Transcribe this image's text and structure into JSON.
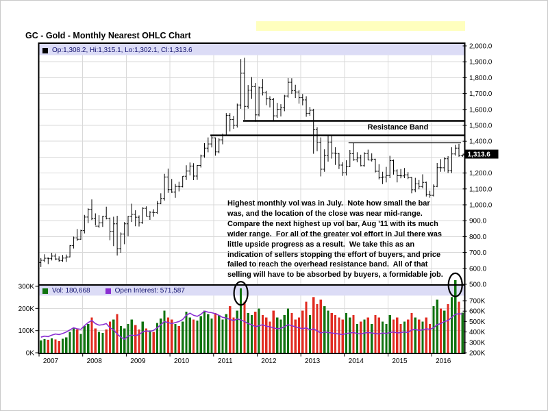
{
  "page": {
    "title": "GC - Gold - Monthly Nearest OHLC Chart"
  },
  "price_legend": {
    "text": "Op:1,308.2, Hi:1,315.1, Lo:1,302.1, Cl:1,313.6"
  },
  "volume_legend": {
    "vol_text": "Vol: 180,668",
    "oi_text": "Open Interest: 571,587"
  },
  "annotations": {
    "resistance_label": "Resistance Band",
    "commentary_lines": [
      "Highest monthly vol was in July.  Note how small the bar",
      "was, and the location of the close was near mid-range.",
      "Compare the next highest up vol bar, Aug '11 with its much",
      "wider range.  For all of the greater vol effort in Jul there was",
      "little upside progress as a result.  We take this as an",
      "indication of sellers stopping the effort of buyers, and price",
      "failed to reach the overhead resistance band.  All of that",
      "selling will have to be absorbed by buyers, a formidable job."
    ]
  },
  "chart_data": {
    "type": "ohlc",
    "title": "GC - Gold - Monthly Nearest OHLC Chart",
    "panes": [
      "price",
      "volume"
    ],
    "months_start": "2007-01",
    "x_years": [
      2007,
      2008,
      2009,
      2010,
      2011,
      2012,
      2013,
      2014,
      2015,
      2016
    ],
    "price_axis": {
      "min": 500,
      "max": 2000,
      "tick": 100,
      "side": "right"
    },
    "volume_axis": {
      "min": 0,
      "max": 300,
      "tick": 100,
      "unit": "K",
      "side": "left"
    },
    "oi_axis": {
      "min": 200,
      "max": 700,
      "tick": 100,
      "unit": "K",
      "side": "right"
    },
    "current_price_label": "1,313.6",
    "series": {
      "open": [
        636,
        651,
        664,
        661,
        677,
        659,
        650,
        665,
        672,
        743,
        792,
        783,
        838,
        923,
        971,
        916,
        866,
        887,
        928,
        913,
        833,
        880,
        724,
        816,
        880,
        927,
        940,
        922,
        888,
        978,
        927,
        953,
        951,
        1008,
        1040,
        1175,
        1096,
        1081,
        1116,
        1114,
        1180,
        1212,
        1244,
        1181,
        1248,
        1307,
        1357,
        1383,
        1421,
        1333,
        1409,
        1438,
        1563,
        1536,
        1500,
        1628,
        1828,
        1620,
        1722,
        1745,
        1566,
        1737,
        1709,
        1668,
        1662,
        1560,
        1600,
        1611,
        1685,
        1771,
        1718,
        1710,
        1674,
        1660,
        1576,
        1595,
        1472,
        1392,
        1224,
        1312,
        1395,
        1326,
        1323,
        1250,
        1202,
        1240,
        1321,
        1283,
        1295,
        1246,
        1322,
        1282,
        1287,
        1211,
        1171,
        1175,
        1184,
        1278,
        1213,
        1183,
        1182,
        1189,
        1171,
        1095,
        1132,
        1115,
        1141,
        1065,
        1060,
        1116,
        1234,
        1233,
        1290,
        1215,
        1320,
        1357,
        1308.2
      ],
      "high": [
        665,
        689,
        669,
        698,
        693,
        676,
        684,
        687,
        747,
        800,
        848,
        843,
        936,
        978,
        1034,
        946,
        935,
        931,
        988,
        920,
        925,
        931,
        826,
        892,
        930,
        1007,
        966,
        933,
        985,
        990,
        960,
        972,
        1024,
        1072,
        1195,
        1227,
        1163,
        1131,
        1145,
        1181,
        1249,
        1266,
        1262,
        1250,
        1316,
        1388,
        1424,
        1432,
        1424,
        1418,
        1448,
        1577,
        1577,
        1559,
        1637,
        1917,
        1925,
        1754,
        1804,
        1767,
        1744,
        1792,
        1717,
        1683,
        1672,
        1642,
        1633,
        1692,
        1798,
        1796,
        1755,
        1723,
        1697,
        1683,
        1616,
        1604,
        1488,
        1424,
        1349,
        1434,
        1434,
        1362,
        1327,
        1268,
        1280,
        1345,
        1392,
        1331,
        1315,
        1330,
        1347,
        1324,
        1290,
        1256,
        1208,
        1239,
        1308,
        1285,
        1223,
        1225,
        1232,
        1206,
        1175,
        1170,
        1156,
        1192,
        1146,
        1088,
        1128,
        1263,
        1287,
        1299,
        1306,
        1362,
        1377,
        1384,
        1315.1
      ],
      "low": [
        608,
        640,
        627,
        650,
        652,
        642,
        642,
        641,
        670,
        725,
        773,
        780,
        820,
        885,
        904,
        871,
        855,
        861,
        908,
        777,
        740,
        681,
        698,
        752,
        802,
        892,
        865,
        864,
        880,
        927,
        905,
        925,
        943,
        1004,
        1027,
        1075,
        1074,
        1044,
        1084,
        1110,
        1156,
        1185,
        1155,
        1157,
        1235,
        1296,
        1330,
        1361,
        1309,
        1325,
        1381,
        1437,
        1462,
        1478,
        1486,
        1604,
        1535,
        1605,
        1667,
        1523,
        1556,
        1688,
        1627,
        1613,
        1529,
        1547,
        1556,
        1589,
        1674,
        1698,
        1672,
        1636,
        1626,
        1554,
        1560,
        1321,
        1338,
        1179,
        1208,
        1272,
        1291,
        1251,
        1225,
        1182,
        1184,
        1237,
        1277,
        1268,
        1242,
        1240,
        1281,
        1273,
        1204,
        1160,
        1130,
        1141,
        1168,
        1190,
        1141,
        1167,
        1168,
        1162,
        1072,
        1080,
        1098,
        1104,
        1052,
        1045,
        1053,
        1111,
        1208,
        1209,
        1199,
        1200,
        1310,
        1302,
        1302.1
      ],
      "close": [
        651,
        664,
        661,
        677,
        659,
        650,
        665,
        672,
        743,
        792,
        783,
        838,
        923,
        971,
        916,
        866,
        887,
        928,
        913,
        833,
        880,
        724,
        816,
        880,
        927,
        940,
        922,
        888,
        978,
        927,
        953,
        951,
        1008,
        1040,
        1175,
        1096,
        1081,
        1116,
        1114,
        1180,
        1212,
        1244,
        1181,
        1248,
        1307,
        1357,
        1383,
        1421,
        1333,
        1409,
        1438,
        1563,
        1536,
        1500,
        1628,
        1828,
        1620,
        1722,
        1745,
        1566,
        1737,
        1709,
        1668,
        1662,
        1560,
        1600,
        1611,
        1685,
        1771,
        1718,
        1710,
        1674,
        1660,
        1576,
        1595,
        1472,
        1392,
        1224,
        1312,
        1395,
        1326,
        1323,
        1250,
        1202,
        1240,
        1321,
        1283,
        1295,
        1246,
        1322,
        1282,
        1287,
        1211,
        1171,
        1175,
        1184,
        1278,
        1213,
        1183,
        1182,
        1189,
        1171,
        1095,
        1132,
        1115,
        1141,
        1065,
        1060,
        1116,
        1234,
        1233,
        1290,
        1215,
        1320,
        1357,
        1309,
        1313.6
      ],
      "volume_k": [
        55,
        62,
        58,
        65,
        60,
        52,
        64,
        70,
        95,
        110,
        105,
        85,
        120,
        130,
        160,
        110,
        95,
        90,
        105,
        140,
        150,
        175,
        120,
        110,
        130,
        150,
        125,
        105,
        140,
        110,
        100,
        95,
        135,
        155,
        190,
        160,
        150,
        130,
        120,
        140,
        185,
        160,
        150,
        145,
        165,
        190,
        175,
        155,
        180,
        170,
        150,
        175,
        210,
        160,
        190,
        290,
        230,
        180,
        170,
        185,
        200,
        170,
        160,
        140,
        190,
        160,
        150,
        170,
        200,
        180,
        150,
        160,
        190,
        230,
        170,
        250,
        220,
        240,
        210,
        190,
        180,
        170,
        160,
        150,
        180,
        160,
        170,
        130,
        140,
        150,
        160,
        130,
        170,
        160,
        140,
        130,
        170,
        150,
        160,
        130,
        140,
        150,
        180,
        160,
        150,
        140,
        160,
        130,
        210,
        240,
        200,
        190,
        220,
        250,
        328,
        230,
        181
      ],
      "open_interest_k": [
        350,
        360,
        355,
        370,
        380,
        375,
        385,
        400,
        420,
        440,
        430,
        425,
        460,
        490,
        510,
        480,
        465,
        470,
        480,
        440,
        420,
        380,
        350,
        330,
        360,
        370,
        365,
        375,
        400,
        410,
        405,
        415,
        440,
        470,
        500,
        490,
        480,
        490,
        500,
        520,
        560,
        580,
        560,
        550,
        570,
        600,
        590,
        585,
        575,
        560,
        540,
        535,
        520,
        510,
        525,
        515,
        500,
        480,
        470,
        450,
        460,
        470,
        455,
        450,
        440,
        430,
        435,
        450,
        470,
        460,
        450,
        440,
        430,
        440,
        420,
        430,
        410,
        390,
        400,
        395,
        390,
        385,
        380,
        375,
        385,
        390,
        395,
        385,
        380,
        390,
        395,
        390,
        385,
        380,
        390,
        385,
        395,
        400,
        390,
        395,
        400,
        395,
        420,
        425,
        415,
        420,
        430,
        425,
        440,
        470,
        480,
        500,
        510,
        540,
        570,
        575,
        572
      ]
    },
    "overlays": {
      "resistance_lines": [
        {
          "price": 1528,
          "from": "2011-09",
          "to": "2016-09",
          "style": "thick"
        },
        {
          "price": 1437,
          "from": "2010-12",
          "to": "2016-09",
          "style": "thick"
        },
        {
          "price": 1390,
          "from": "2014-02",
          "to": "2016-08",
          "style": "thin"
        }
      ],
      "circled_months": [
        "2011-08",
        "2016-07"
      ]
    },
    "colors": {
      "ohlc": "#000000",
      "up_volume": "#107310",
      "down_volume": "#e02b20",
      "oi_line": "#8a2fd2",
      "legend_strip": "#dcdcf6",
      "grid": "#d9d9d9",
      "highlight": "#ffffbe",
      "price_tag_bg": "#000000",
      "price_tag_text": "#ffffff"
    }
  }
}
